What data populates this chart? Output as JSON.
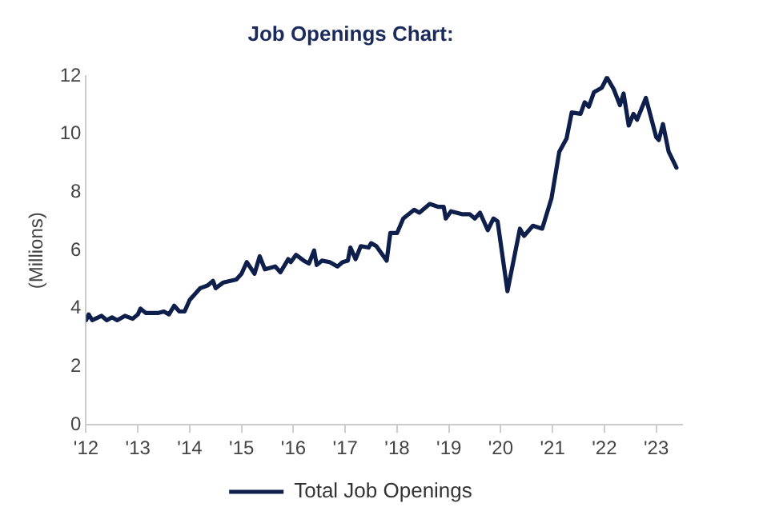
{
  "chart_data": {
    "type": "line",
    "title": "Job Openings Chart:",
    "ylabel": "(Millions)",
    "xlim": [
      2012,
      2023.5
    ],
    "xticks": [
      {
        "value": 2012,
        "label": "'12"
      },
      {
        "value": 2013,
        "label": "'13"
      },
      {
        "value": 2014,
        "label": "'14"
      },
      {
        "value": 2015,
        "label": "'15"
      },
      {
        "value": 2016,
        "label": "'16"
      },
      {
        "value": 2017,
        "label": "'17"
      },
      {
        "value": 2018,
        "label": "'18"
      },
      {
        "value": 2019,
        "label": "'19"
      },
      {
        "value": 2020,
        "label": "'20"
      },
      {
        "value": 2021,
        "label": "'21"
      },
      {
        "value": 2022,
        "label": "'22"
      },
      {
        "value": 2023,
        "label": "'23"
      }
    ],
    "ylim": [
      0,
      12
    ],
    "yticks": [
      0,
      2,
      4,
      6,
      8,
      10,
      12
    ],
    "grid": false,
    "legend": "bottom",
    "marker": "none",
    "line_style": "solid",
    "series": [
      {
        "name": "Total Job Openings",
        "color": "#0f1f4b",
        "x": [
          2012.0,
          2012.05,
          2012.12,
          2012.3,
          2012.4,
          2012.5,
          2012.6,
          2012.75,
          2012.9,
          2013.0,
          2013.05,
          2013.15,
          2013.4,
          2013.5,
          2013.6,
          2013.7,
          2013.8,
          2013.9,
          2014.0,
          2014.2,
          2014.35,
          2014.45,
          2014.5,
          2014.65,
          2014.9,
          2015.0,
          2015.1,
          2015.25,
          2015.35,
          2015.45,
          2015.65,
          2015.75,
          2015.9,
          2015.95,
          2016.05,
          2016.2,
          2016.3,
          2016.4,
          2016.45,
          2016.55,
          2016.7,
          2016.85,
          2016.95,
          2017.05,
          2017.1,
          2017.2,
          2017.3,
          2017.45,
          2017.5,
          2017.6,
          2017.8,
          2017.87,
          2018.0,
          2018.12,
          2018.33,
          2018.43,
          2018.63,
          2018.8,
          2018.9,
          2018.94,
          2019.04,
          2019.25,
          2019.4,
          2019.5,
          2019.6,
          2019.75,
          2019.86,
          2019.94,
          2020.13,
          2020.37,
          2020.45,
          2020.62,
          2020.8,
          2020.98,
          2021.13,
          2021.27,
          2021.37,
          2021.54,
          2021.62,
          2021.7,
          2021.8,
          2021.95,
          2022.05,
          2022.18,
          2022.3,
          2022.37,
          2022.47,
          2022.56,
          2022.63,
          2022.8,
          2023.0,
          2023.05,
          2023.13,
          2023.24,
          2023.39
        ],
        "values": [
          3.6,
          3.8,
          3.6,
          3.75,
          3.6,
          3.7,
          3.6,
          3.75,
          3.65,
          3.8,
          4.0,
          3.85,
          3.85,
          3.9,
          3.8,
          4.1,
          3.9,
          3.9,
          4.3,
          4.7,
          4.8,
          4.95,
          4.7,
          4.9,
          5.0,
          5.2,
          5.6,
          5.2,
          5.8,
          5.35,
          5.45,
          5.25,
          5.7,
          5.6,
          5.85,
          5.65,
          5.55,
          6.0,
          5.5,
          5.65,
          5.6,
          5.45,
          5.6,
          5.65,
          6.1,
          5.7,
          6.15,
          6.1,
          6.25,
          6.15,
          5.65,
          6.6,
          6.6,
          7.1,
          7.4,
          7.3,
          7.6,
          7.5,
          7.5,
          7.1,
          7.35,
          7.25,
          7.25,
          7.1,
          7.3,
          6.7,
          7.1,
          7.0,
          4.6,
          6.75,
          6.5,
          6.85,
          6.75,
          7.8,
          9.4,
          9.85,
          10.75,
          10.7,
          11.1,
          10.95,
          11.45,
          11.6,
          11.95,
          11.55,
          11.0,
          11.4,
          10.3,
          10.7,
          10.5,
          11.25,
          9.9,
          9.8,
          10.35,
          9.4,
          8.85
        ]
      }
    ]
  }
}
